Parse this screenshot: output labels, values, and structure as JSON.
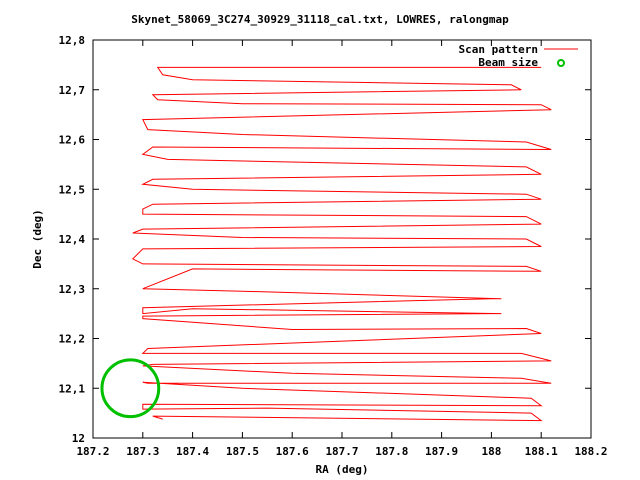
{
  "chart_data": {
    "type": "line",
    "title": "Skynet_58069_3C274_30929_31118_cal.txt, LOWRES, ralongmap",
    "xlabel": "RA (deg)",
    "ylabel": "Dec (deg)",
    "xlim": [
      187.2,
      188.2
    ],
    "ylim": [
      12.0,
      12.8
    ],
    "xticks": [
      187.2,
      187.3,
      187.4,
      187.5,
      187.6,
      187.7,
      187.8,
      187.9,
      188.0,
      188.1,
      188.2
    ],
    "xtick_labels": [
      "187.2",
      "187.3",
      "187.4",
      "187.5",
      "187.6",
      "187.7",
      "187.8",
      "187.9",
      "188",
      "188.1",
      "188.2"
    ],
    "yticks": [
      12.0,
      12.1,
      12.2,
      12.3,
      12.4,
      12.5,
      12.6,
      12.7,
      12.8
    ],
    "ytick_labels": [
      "12",
      "12,1",
      "12,2",
      "12,3",
      "12,4",
      "12,5",
      "12,6",
      "12,7",
      "12,8"
    ],
    "grid": false,
    "legend_position": "top-right",
    "series": [
      {
        "name": "Scan pattern",
        "color": "#ff0000",
        "points": [
          [
            187.34,
            12.038
          ],
          [
            187.32,
            12.044
          ],
          [
            188.1,
            12.035
          ],
          [
            188.08,
            12.05
          ],
          [
            187.55,
            12.06
          ],
          [
            187.3,
            12.058
          ],
          [
            187.3,
            12.068
          ],
          [
            188.1,
            12.065
          ],
          [
            188.08,
            12.08
          ],
          [
            187.5,
            12.1
          ],
          [
            187.3,
            12.112
          ],
          [
            187.31,
            12.11
          ],
          [
            188.12,
            12.11
          ],
          [
            188.06,
            12.12
          ],
          [
            187.6,
            12.13
          ],
          [
            187.3,
            12.145
          ],
          [
            187.32,
            12.148
          ],
          [
            188.12,
            12.155
          ],
          [
            188.06,
            12.17
          ],
          [
            187.7,
            12.17
          ],
          [
            187.3,
            12.17
          ],
          [
            187.31,
            12.18
          ],
          [
            188.1,
            12.21
          ],
          [
            188.07,
            12.22
          ],
          [
            187.6,
            12.218
          ],
          [
            187.3,
            12.24
          ],
          [
            187.3,
            12.245
          ],
          [
            188.0,
            12.25
          ],
          [
            188.02,
            12.25
          ],
          [
            187.4,
            12.26
          ],
          [
            187.3,
            12.25
          ],
          [
            187.3,
            12.262
          ],
          [
            188.0,
            12.28
          ],
          [
            188.02,
            12.28
          ],
          [
            187.5,
            12.295
          ],
          [
            187.3,
            12.3
          ],
          [
            187.4,
            12.34
          ],
          [
            188.1,
            12.335
          ],
          [
            188.07,
            12.345
          ],
          [
            187.3,
            12.35
          ],
          [
            187.28,
            12.36
          ],
          [
            187.3,
            12.38
          ],
          [
            188.1,
            12.385
          ],
          [
            188.07,
            12.4
          ],
          [
            187.5,
            12.403
          ],
          [
            187.28,
            12.412
          ],
          [
            187.3,
            12.42
          ],
          [
            188.1,
            12.43
          ],
          [
            188.07,
            12.445
          ],
          [
            187.3,
            12.45
          ],
          [
            187.3,
            12.46
          ],
          [
            187.32,
            12.47
          ],
          [
            188.1,
            12.48
          ],
          [
            188.07,
            12.49
          ],
          [
            187.4,
            12.5
          ],
          [
            187.3,
            12.51
          ],
          [
            187.32,
            12.52
          ],
          [
            188.1,
            12.53
          ],
          [
            188.07,
            12.545
          ],
          [
            187.35,
            12.56
          ],
          [
            187.3,
            12.57
          ],
          [
            187.32,
            12.585
          ],
          [
            188.12,
            12.58
          ],
          [
            188.07,
            12.595
          ],
          [
            187.5,
            12.61
          ],
          [
            187.31,
            12.62
          ],
          [
            187.3,
            12.64
          ],
          [
            188.12,
            12.66
          ],
          [
            188.1,
            12.67
          ],
          [
            187.5,
            12.672
          ],
          [
            187.33,
            12.68
          ],
          [
            187.32,
            12.69
          ],
          [
            188.06,
            12.7
          ],
          [
            188.04,
            12.71
          ],
          [
            187.4,
            12.72
          ],
          [
            187.34,
            12.73
          ],
          [
            187.33,
            12.745
          ],
          [
            188.1,
            12.745
          ]
        ]
      }
    ],
    "beam": {
      "name": "Beam size",
      "color": "#00c000",
      "center": [
        187.275,
        12.1
      ],
      "radius_deg": 0.057
    }
  }
}
